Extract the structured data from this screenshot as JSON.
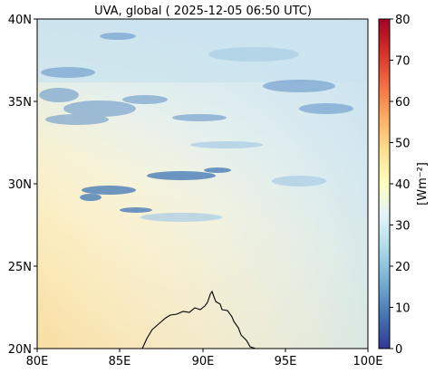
{
  "title": "UVA, global ( 2025-12-05 06:50 UTC)",
  "axes": {
    "x_ticks": [
      "80E",
      "85E",
      "90E",
      "95E",
      "100E"
    ],
    "y_ticks": [
      "40N",
      "35N",
      "30N",
      "25N",
      "20N"
    ]
  },
  "colorbar": {
    "label": "[Wm⁻²]",
    "ticks": [
      "80",
      "70",
      "60",
      "50",
      "40",
      "30",
      "20",
      "10",
      "0"
    ],
    "min": 0,
    "max": 80,
    "colormap": "RdYlBu_r"
  },
  "colors": {
    "clear_sky_south": "#f8dfa3",
    "clear_sky_mid": "#fbf0c7",
    "north_haze": "#cfe5ef",
    "cloud": "#4f85bf",
    "coastline": "#000000"
  },
  "map_extent": {
    "lon": [
      80,
      100
    ],
    "lat": [
      20,
      40
    ]
  }
}
